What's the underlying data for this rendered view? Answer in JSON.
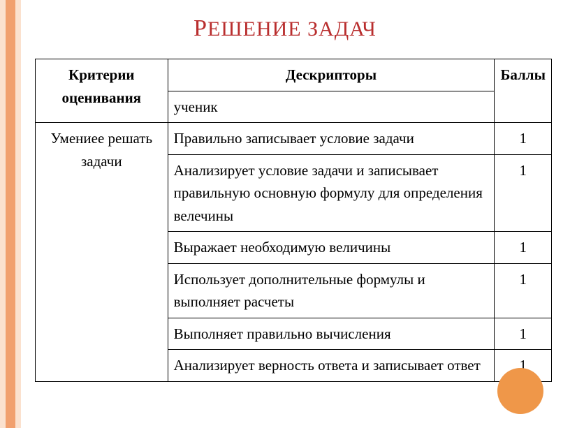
{
  "title_first": "Р",
  "title_rest": "ЕШЕНИЕ ЗАДАЧ",
  "headers": {
    "criteria": "Критерии оценивания",
    "descriptors": "Дескрипторы",
    "subhead": "ученик",
    "points": "Баллы"
  },
  "criterion": "Умениее решать задачи",
  "rows": [
    {
      "desc": "Правильно записывает условие задачи",
      "score": "1"
    },
    {
      "desc": "Анализирует условие задачи  и записывает правильную основную формулу для определения велечины",
      "score": "1"
    },
    {
      "desc": "Выражает необходимую величины",
      "score": "1"
    },
    {
      "desc": "Использует дополнительные формулы и выполняет расчеты",
      "score": "1"
    },
    {
      "desc": "Выполняет правильно вычисления",
      "score": "1"
    },
    {
      "desc": "Анализирует верность ответа и записывает ответ",
      "score": "1"
    }
  ],
  "colors": {
    "title": "#b92e2e",
    "stripe_outer": "#fbe1ce",
    "stripe_inner": "#f1a06e",
    "circle": "#ef9749",
    "border": "#000000",
    "background": "#ffffff"
  }
}
